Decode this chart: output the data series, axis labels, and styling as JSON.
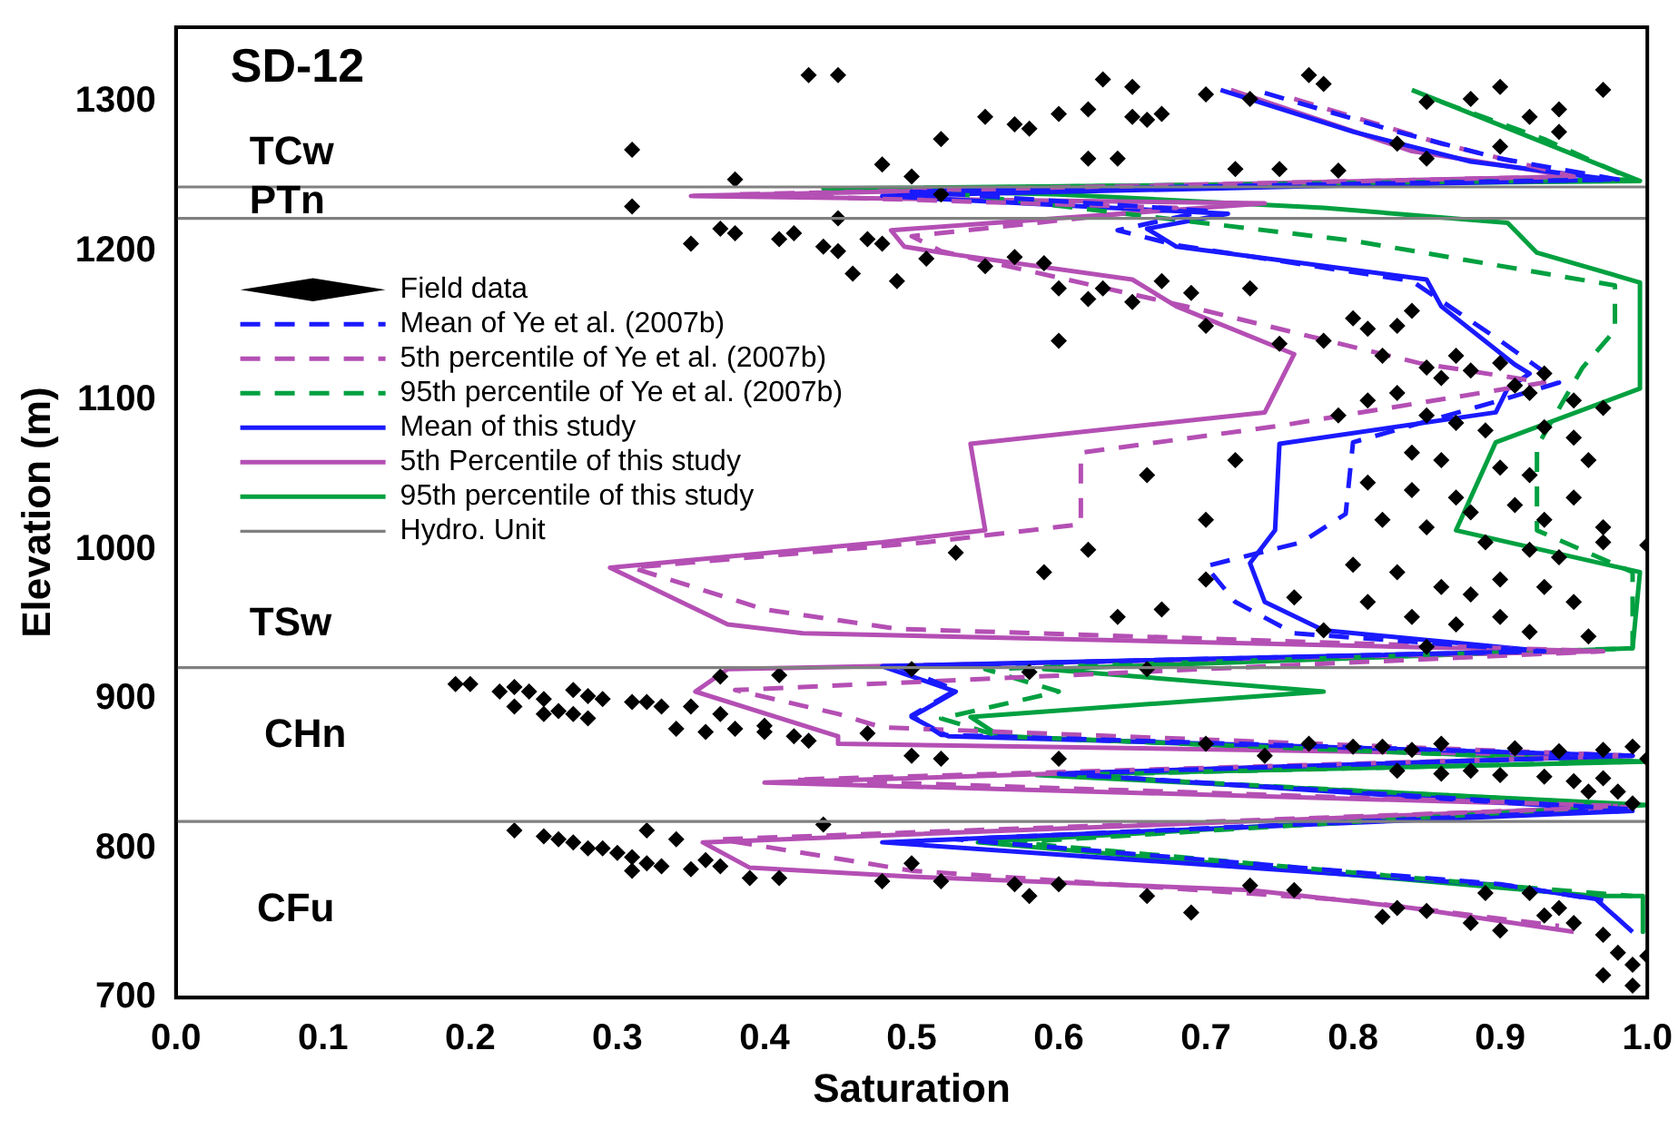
{
  "chart_data": {
    "type": "scatter",
    "title": "SD-12",
    "xlabel": "Saturation",
    "ylabel": "Elevation (m)",
    "xlim": [
      0,
      1
    ],
    "xticks": [
      {
        "value": 0,
        "label": "0.0"
      },
      0.1,
      0.2,
      0.3,
      0.4,
      0.5,
      0.6,
      0.7,
      0.8,
      0.9,
      {
        "value": 1,
        "label": "1.0"
      }
    ],
    "ylim": [
      700,
      1350
    ],
    "yticks": [
      700,
      800,
      900,
      1000,
      1100,
      1200,
      1300
    ],
    "legend": "left",
    "annotations": [
      "TCw",
      "PTn",
      "TSw",
      "CHn",
      "CFu"
    ],
    "series": [
      {
        "name": "Field data",
        "type": "scatter",
        "color": "#000000",
        "marker": "diamond",
        "x": [
          0.43,
          0.45,
          0.31,
          0.63,
          0.65,
          0.55,
          0.57,
          0.58,
          0.6,
          0.62,
          0.65,
          0.66,
          0.67,
          0.52,
          0.62,
          0.64,
          0.7,
          0.73,
          0.77,
          0.78,
          0.85,
          0.88,
          0.9,
          0.92,
          0.94,
          0.97,
          0.83,
          0.72,
          0.75,
          0.79,
          0.85,
          0.9,
          0.94,
          0.48,
          0.5,
          0.38,
          0.31,
          0.45,
          0.52,
          0.35,
          0.37,
          0.38,
          0.41,
          0.42,
          0.44,
          0.45,
          0.47,
          0.48,
          0.46,
          0.49,
          0.51,
          0.55,
          0.57,
          0.59,
          0.6,
          0.62,
          0.63,
          0.65,
          0.67,
          0.69,
          0.7,
          0.73,
          0.6,
          0.75,
          0.78,
          0.8,
          0.81,
          0.83,
          0.84,
          0.82,
          0.85,
          0.87,
          0.86,
          0.88,
          0.9,
          0.91,
          0.93,
          0.92,
          0.95,
          0.97,
          0.83,
          0.81,
          0.79,
          0.85,
          0.87,
          0.89,
          0.93,
          0.95,
          0.96,
          0.84,
          0.86,
          0.9,
          0.92,
          0.81,
          0.84,
          0.87,
          0.88,
          0.91,
          0.93,
          0.95,
          0.97,
          0.82,
          0.85,
          0.89,
          0.92,
          0.94,
          0.97,
          1.0,
          0.8,
          0.83,
          0.86,
          0.88,
          0.9,
          0.93,
          0.95,
          0.81,
          0.84,
          0.87,
          0.9,
          0.92,
          0.62,
          0.59,
          0.53,
          0.7,
          0.67,
          0.64,
          0.76,
          0.78,
          0.96,
          0.85,
          0.66,
          0.7,
          0.72,
          0.19,
          0.2,
          0.22,
          0.23,
          0.24,
          0.25,
          0.27,
          0.28,
          0.23,
          0.25,
          0.26,
          0.27,
          0.29,
          0.31,
          0.32,
          0.33,
          0.35,
          0.37,
          0.28,
          0.34,
          0.36,
          0.38,
          0.4,
          0.42,
          0.43,
          0.47,
          0.4,
          0.37,
          0.41,
          0.5,
          0.58,
          0.66,
          0.77,
          0.8,
          0.82,
          0.84,
          0.86,
          0.91,
          0.94,
          0.97,
          0.99,
          0.83,
          0.86,
          0.88,
          0.9,
          0.93,
          0.95,
          0.97,
          1.0,
          0.98,
          0.96,
          0.99,
          0.5,
          0.52,
          0.6,
          0.7,
          0.74,
          0.23,
          0.25,
          0.26,
          0.27,
          0.28,
          0.29,
          0.3,
          0.31,
          0.32,
          0.33,
          0.35,
          0.36,
          0.37,
          0.39,
          0.41,
          0.44,
          0.32,
          0.34,
          0.31,
          0.48,
          0.5,
          0.52,
          0.57,
          0.6,
          0.66,
          0.73,
          0.76,
          0.83,
          0.85,
          0.82,
          0.89,
          0.92,
          0.94,
          0.95,
          0.97,
          0.98,
          0.99,
          0.97,
          0.99,
          1.0,
          0.93,
          0.88,
          0.9,
          0.69,
          0.58
        ],
        "values": [
          1318,
          1318,
          1268,
          1315,
          1310,
          1290,
          1285,
          1282,
          1292,
          1295,
          1290,
          1288,
          1292,
          1275,
          1262,
          1262,
          1305,
          1302,
          1318,
          1312,
          1300,
          1302,
          1310,
          1290,
          1295,
          1308,
          1272,
          1255,
          1255,
          1254,
          1262,
          1270,
          1280,
          1258,
          1250,
          1248,
          1230,
          1222,
          1238,
          1205,
          1215,
          1212,
          1208,
          1212,
          1203,
          1200,
          1208,
          1205,
          1185,
          1180,
          1195,
          1190,
          1196,
          1192,
          1175,
          1168,
          1175,
          1166,
          1180,
          1172,
          1150,
          1175,
          1140,
          1138,
          1140,
          1155,
          1148,
          1150,
          1160,
          1130,
          1122,
          1130,
          1115,
          1120,
          1125,
          1110,
          1118,
          1105,
          1100,
          1095,
          1105,
          1100,
          1090,
          1090,
          1085,
          1080,
          1082,
          1075,
          1060,
          1065,
          1060,
          1055,
          1050,
          1045,
          1040,
          1035,
          1025,
          1030,
          1020,
          1035,
          1015,
          1020,
          1015,
          1005,
          1000,
          995,
          1005,
          1003,
          990,
          985,
          975,
          970,
          980,
          975,
          965,
          965,
          955,
          950,
          955,
          945,
          1000,
          985,
          998,
          980,
          960,
          955,
          968,
          946,
          942,
          935,
          1050,
          1020,
          1060,
          910,
          910,
          905,
          908,
          905,
          900,
          906,
          902,
          895,
          890,
          892,
          890,
          900,
          898,
          898,
          895,
          895,
          890,
          887,
          880,
          878,
          880,
          878,
          875,
          872,
          877,
          882,
          915,
          916,
          920,
          918,
          920,
          870,
          868,
          868,
          866,
          870,
          867,
          865,
          866,
          868,
          852,
          850,
          852,
          849,
          848,
          845,
          847,
          860,
          838,
          838,
          830,
          862,
          860,
          860,
          870,
          862,
          812,
          808,
          806,
          804,
          800,
          800,
          797,
          794,
          790,
          788,
          786,
          792,
          788,
          780,
          780,
          816,
          812,
          806,
          785,
          778,
          790,
          778,
          776,
          776,
          768,
          775,
          772,
          760,
          758,
          754,
          770,
          770,
          760,
          750,
          742,
          730,
          722,
          715,
          708,
          728,
          755,
          750,
          745,
          757,
          768
        ]
      },
      {
        "name": "Mean of Ye et al. (2007b)",
        "type": "line",
        "color": "#1a1aff",
        "line_style": "dashed",
        "x": [
          0.74,
          0.83,
          0.9,
          0.98,
          0.5,
          0.7,
          0.64,
          0.68,
          0.84,
          0.9,
          0.94,
          0.9,
          0.8,
          0.795,
          0.765,
          0.7,
          0.72,
          0.76,
          0.93,
          0.49,
          0.53,
          0.5,
          0.52,
          0.99,
          0.6,
          0.99,
          0.53,
          0.9,
          0.97
        ],
        "values": [
          1306,
          1280,
          1262,
          1248,
          1240,
          1227,
          1214,
          1204,
          1180,
          1140,
          1112,
          1100,
          1072,
          1024,
          1005,
          989,
          965,
          944,
          932,
          922,
          906,
          889,
          876,
          862,
          850,
          826,
          806,
          776,
          765
        ]
      },
      {
        "name": "5th percentile of Ye et al. (2007b)",
        "type": "line",
        "color": "#b44fb4",
        "line_style": "dashed",
        "x": [
          0.76,
          0.86,
          0.95,
          0.38,
          0.68,
          0.5,
          0.52,
          0.7,
          0.845,
          0.93,
          0.75,
          0.615,
          0.615,
          0.51,
          0.31,
          0.4,
          0.49,
          0.97,
          0.38,
          0.45,
          0.48,
          0.99,
          0.42,
          0.99,
          0.37,
          0.5,
          0.8,
          0.94
        ],
        "values": [
          1302,
          1272,
          1250,
          1238,
          1229,
          1210,
          1200,
          1160,
          1125,
          1112,
          1083,
          1065,
          1017,
          1005,
          988,
          960,
          947,
          932,
          906,
          890,
          881,
          862,
          846,
          828,
          806,
          785,
          765,
          748
        ]
      },
      {
        "name": "95th percentile of Ye et al. (2007b)",
        "type": "line",
        "color": "#00a040",
        "line_style": "dashed",
        "x": [
          0.86,
          0.93,
          0.99,
          0.5,
          0.8,
          0.978,
          0.978,
          0.956,
          0.925,
          0.925,
          0.99,
          0.99,
          0.55,
          0.6,
          0.52,
          0.56,
          0.99,
          0.6,
          0.99,
          0.57,
          0.9,
          0.99
        ],
        "values": [
          1300,
          1275,
          1248,
          1242,
          1207,
          1177,
          1147,
          1122,
          1069,
          1013,
          985,
          934,
          920,
          905,
          887,
          875,
          858,
          849,
          829,
          804,
          775,
          768
        ]
      },
      {
        "name": "Mean of this study",
        "type": "line",
        "color": "#1a1aff",
        "line_style": "solid",
        "x": [
          0.71,
          0.8,
          0.88,
          0.975,
          0.48,
          0.715,
          0.66,
          0.68,
          0.85,
          0.86,
          0.91,
          0.92,
          0.905,
          0.897,
          0.75,
          0.747,
          0.73,
          0.74,
          0.78,
          0.93,
          0.48,
          0.53,
          0.5,
          0.525,
          0.99,
          0.6,
          0.99,
          0.48,
          0.905,
          0.965,
          0.99
        ],
        "values": [
          1308,
          1280,
          1260,
          1248,
          1237,
          1225,
          1215,
          1203,
          1181,
          1163,
          1124,
          1118,
          1108,
          1092,
          1071,
          1013,
          991,
          965,
          946,
          932,
          922,
          905,
          888,
          875,
          862,
          850,
          825,
          804,
          775,
          766,
          744
        ]
      },
      {
        "name": "5th Percentile of this study",
        "type": "line",
        "color": "#b44fb4",
        "line_style": "solid",
        "x": [
          0.717,
          0.84,
          0.95,
          0.35,
          0.74,
          0.486,
          0.495,
          0.52,
          0.65,
          0.68,
          0.76,
          0.74,
          0.54,
          0.55,
          0.48,
          0.295,
          0.375,
          0.426,
          0.97,
          0.375,
          0.353,
          0.45,
          0.45,
          0.99,
          0.4,
          0.99,
          0.358,
          0.39,
          0.5,
          0.73,
          0.84,
          0.95
        ],
        "values": [
          1308,
          1267,
          1250,
          1237,
          1232,
          1214,
          1203,
          1199,
          1181,
          1163,
          1131,
          1092,
          1071,
          1013,
          1005,
          988,
          950,
          944,
          932,
          920,
          905,
          875,
          870,
          862,
          844,
          828,
          804,
          787,
          781,
          772,
          760,
          744
        ]
      },
      {
        "name": "95th percentile of this study",
        "type": "line",
        "color": "#00a040",
        "line_style": "solid",
        "x": [
          0.84,
          0.995,
          0.44,
          0.6,
          0.78,
          0.905,
          0.925,
          0.995,
          0.995,
          0.897,
          0.87,
          0.995,
          0.99,
          0.59,
          0.78,
          0.54,
          0.56,
          1.0,
          0.585,
          1.0,
          0.545,
          0.965,
          0.997,
          0.997
        ],
        "values": [
          1308,
          1247,
          1242,
          1238,
          1229,
          1219,
          1199,
          1179,
          1108,
          1072,
          1013,
          985,
          934,
          920,
          905,
          888,
          875,
          858,
          849,
          829,
          804,
          768,
          768,
          744
        ]
      }
    ],
    "ref_lines": [
      {
        "axis": "y",
        "value": 1243,
        "label": "Hydro. Unit",
        "color": "#808080"
      },
      {
        "axis": "y",
        "value": 1222,
        "color": "#808080"
      },
      {
        "axis": "y",
        "value": 921,
        "color": "#808080"
      },
      {
        "axis": "y",
        "value": 818,
        "color": "#808080"
      }
    ]
  }
}
